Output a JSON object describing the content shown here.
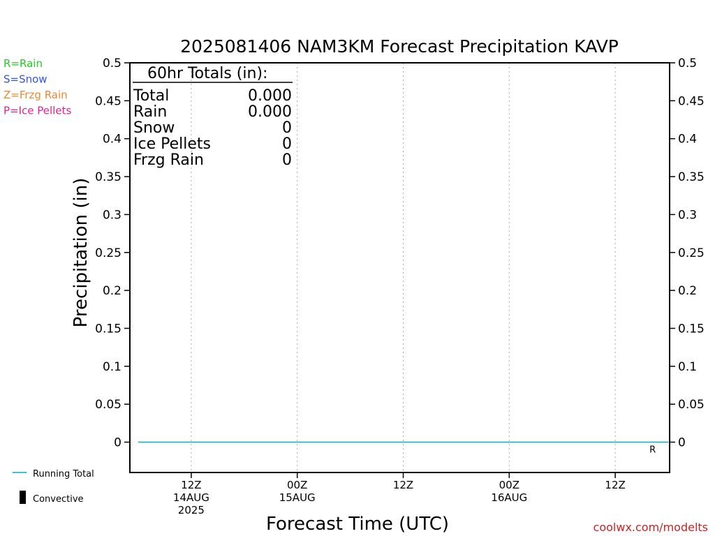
{
  "chart_data": {
    "type": "line",
    "title": "2025081406 NAM3KM Forecast Precipitation KAVP",
    "xlabel": "Forecast Time (UTC)",
    "ylabel": "Precipitation (in)",
    "ylim": [
      -0.04,
      0.5
    ],
    "yticks": [
      "0",
      "0.05",
      "0.1",
      "0.15",
      "0.2",
      "0.25",
      "0.3",
      "0.35",
      "0.4",
      "0.45",
      "0.5"
    ],
    "xlim_hours": [
      0,
      60
    ],
    "xticks": [
      {
        "hour": 6,
        "lines": [
          "12Z",
          "14AUG",
          "2025"
        ]
      },
      {
        "hour": 18,
        "lines": [
          "00Z",
          "15AUG"
        ]
      },
      {
        "hour": 30,
        "lines": [
          "12Z"
        ]
      },
      {
        "hour": 42,
        "lines": [
          "00Z",
          "16AUG"
        ]
      },
      {
        "hour": 54,
        "lines": [
          "12Z"
        ]
      }
    ],
    "grid": "vertical dotted",
    "series": [
      {
        "name": "Running Total",
        "color": "#00b0c0",
        "x": [
          0,
          60
        ],
        "values": [
          0,
          0
        ]
      }
    ],
    "type_legend": [
      {
        "label": "R=Rain",
        "color": "#22cc22"
      },
      {
        "label": "S=Snow",
        "color": "#3355ee"
      },
      {
        "label": "Z=Frzg Rain",
        "color": "#ee8833"
      },
      {
        "label": "P=Ice Pellets",
        "color": "#dd2299"
      }
    ],
    "series_legend": [
      {
        "label": "Running Total",
        "color": "#00b0c0"
      },
      {
        "label": "Convective",
        "color": "#000000"
      }
    ],
    "annotation": {
      "text": "R",
      "hour": 58,
      "color": "#22cc22"
    },
    "totals": {
      "heading": "60hr Totals (in):",
      "rows": [
        {
          "label": "Total",
          "value": "0.000"
        },
        {
          "label": "Rain",
          "value": "0.000"
        },
        {
          "label": "Snow",
          "value": "0"
        },
        {
          "label": "Ice Pellets",
          "value": "0"
        },
        {
          "label": "Frzg Rain",
          "value": "0"
        }
      ]
    },
    "credit": "coolwx.com/modelts"
  }
}
